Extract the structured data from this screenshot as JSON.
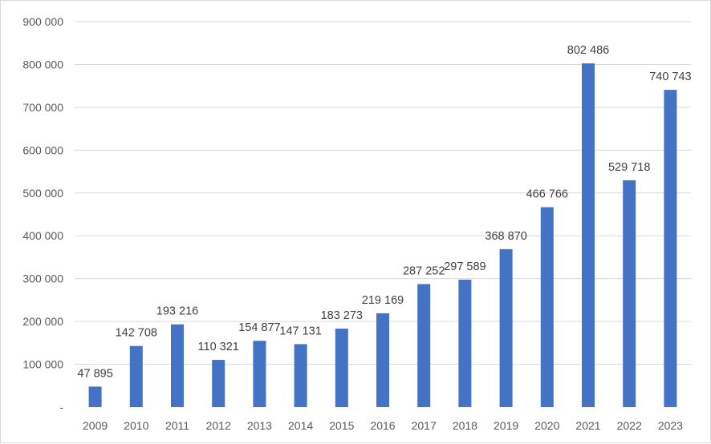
{
  "chart_data": {
    "type": "bar",
    "title": "",
    "xlabel": "",
    "ylabel": "",
    "categories": [
      "2009",
      "2010",
      "2011",
      "2012",
      "2013",
      "2014",
      "2015",
      "2016",
      "2017",
      "2018",
      "2019",
      "2020",
      "2021",
      "2022",
      "2023"
    ],
    "values": [
      47895,
      142708,
      193216,
      110321,
      154877,
      147131,
      183273,
      219169,
      287252,
      297589,
      368870,
      466766,
      802486,
      529718,
      740743
    ],
    "value_labels": [
      "47 895",
      "142 708",
      "193 216",
      "110 321",
      "154 877",
      "147 131",
      "183 273",
      "219 169",
      "287 252",
      "297 589",
      "368 870",
      "466 766",
      "802 486",
      "529 718",
      "740 743"
    ],
    "ylim": [
      0,
      900000
    ],
    "y_ticks": [
      0,
      100000,
      200000,
      300000,
      400000,
      500000,
      600000,
      700000,
      800000,
      900000
    ],
    "y_tick_labels": [
      "-",
      "100 000",
      "200 000",
      "300 000",
      "400 000",
      "500 000",
      "600 000",
      "700 000",
      "800 000",
      "900 000"
    ],
    "grid": true,
    "legend": "none",
    "colors": {
      "bar": "#4472c4",
      "grid": "#d9d9d9",
      "tick_text": "#595959",
      "label_text": "#404040"
    }
  }
}
